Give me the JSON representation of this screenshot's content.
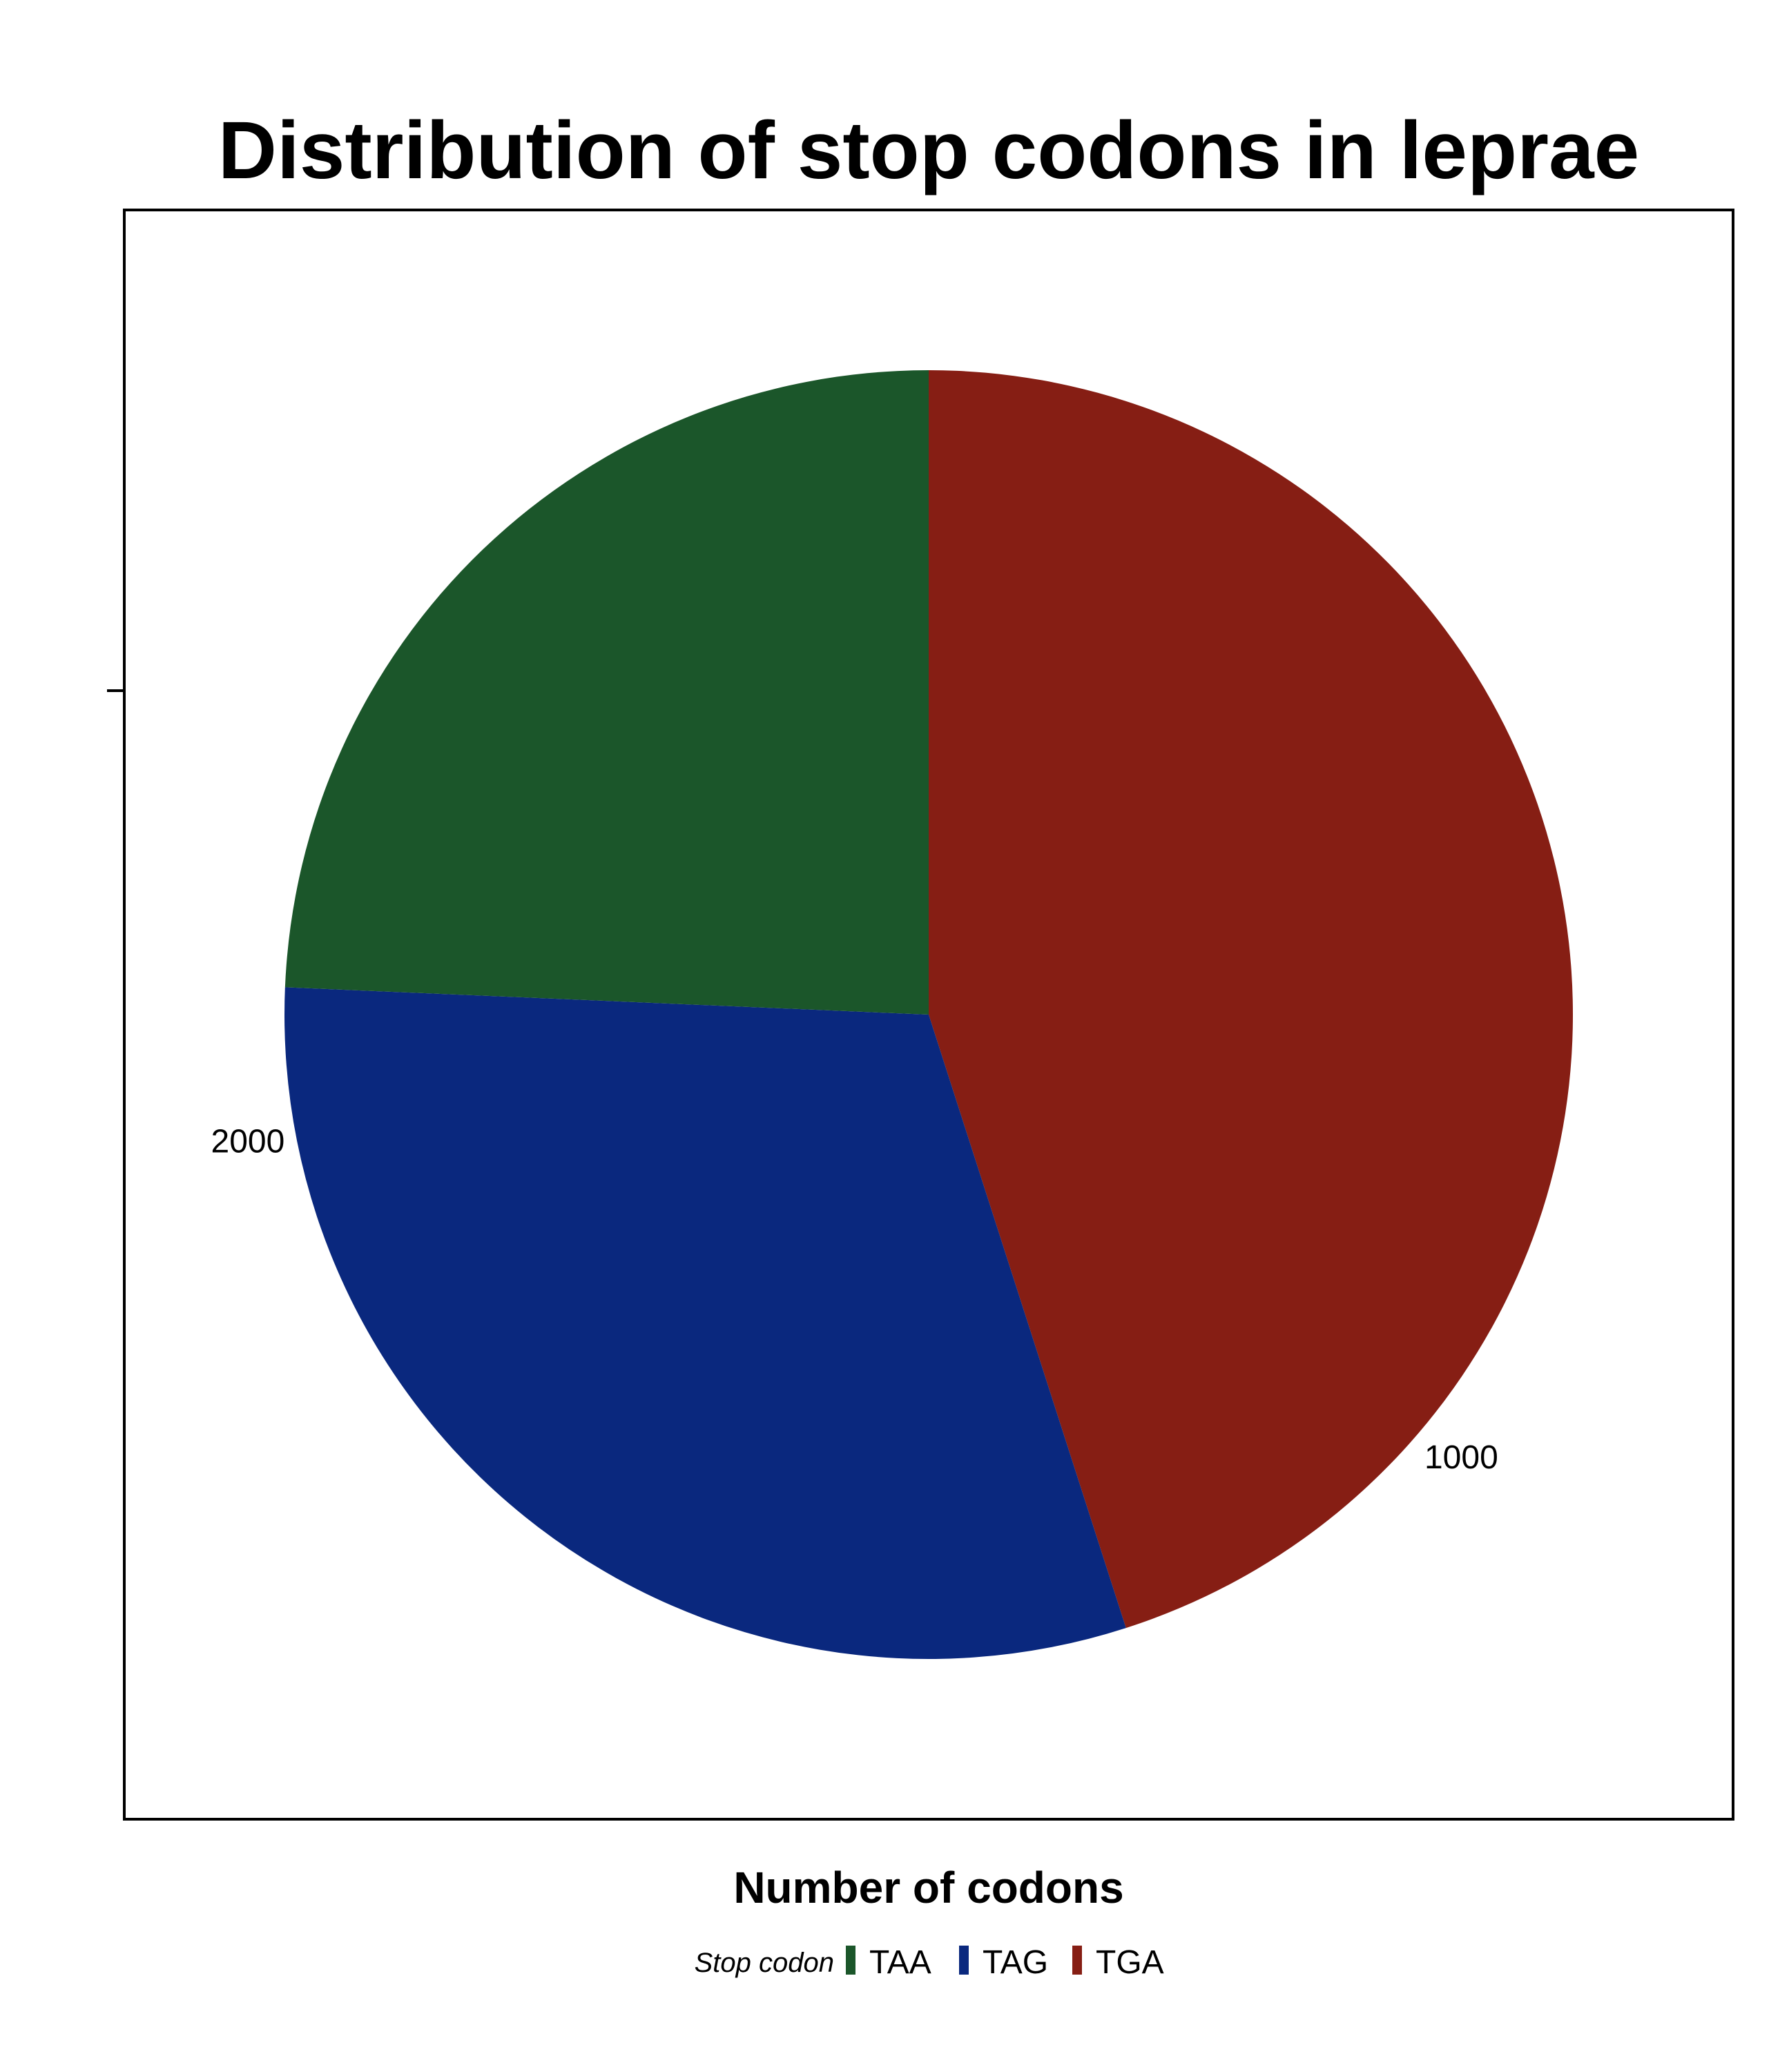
{
  "chart_data": {
    "type": "pie",
    "title": "Distribution of stop codons in leprae",
    "xlabel": "Number of codons",
    "ylabel": "",
    "radial_axis_ticks": [
      {
        "label": "1000",
        "value": 1000
      },
      {
        "label": "2000",
        "value": 2000
      }
    ],
    "total": 2775,
    "slices": [
      {
        "label": "TGA",
        "value": 1250,
        "color": "#861e14"
      },
      {
        "label": "TAG",
        "value": 850,
        "color": "#0a287e"
      },
      {
        "label": "TAA",
        "value": 675,
        "color": "#1b562a"
      }
    ],
    "legend": {
      "title": "Stop codon",
      "placement": "bottom",
      "items": [
        {
          "label": "TAA",
          "color": "#1b562a"
        },
        {
          "label": "TAG",
          "color": "#0a287e"
        },
        {
          "label": "TGA",
          "color": "#861e14"
        }
      ]
    }
  }
}
